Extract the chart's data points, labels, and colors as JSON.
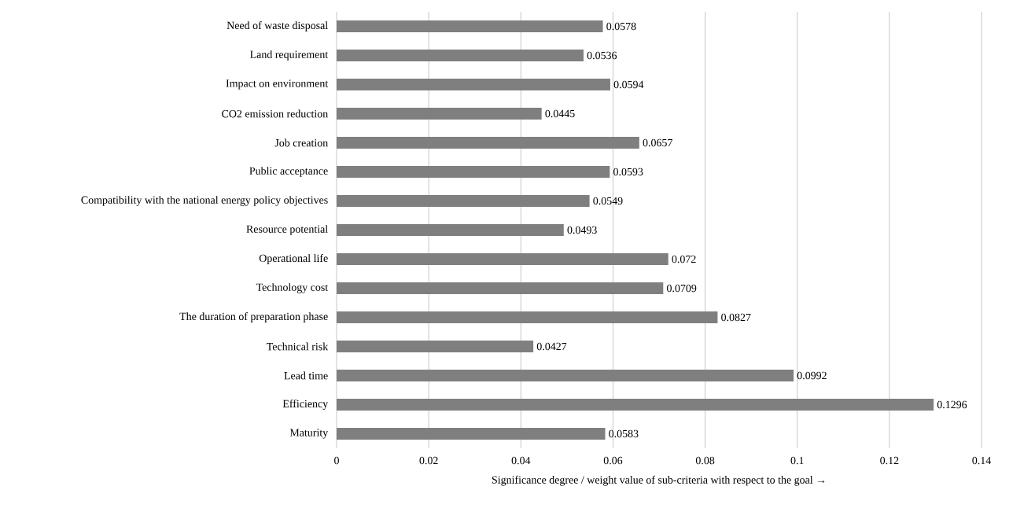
{
  "chart_data": {
    "type": "bar",
    "orientation": "horizontal",
    "xlabel": "Significance degree / weight value of sub-criteria with respect to the goal →",
    "categories": [
      "Need of waste disposal",
      "Land requirement",
      "Impact on environment",
      "CO2 emission reduction",
      "Job creation",
      "Public acceptance",
      "Compatibility with the national energy policy objectives",
      "Resource potential",
      "Operational life",
      "Technology cost",
      "The duration of preparation phase",
      "Technical risk",
      "Lead time",
      "Efficiency",
      "Maturity"
    ],
    "values": [
      0.0578,
      0.0536,
      0.0594,
      0.0445,
      0.0657,
      0.0593,
      0.0549,
      0.0493,
      0.072,
      0.0709,
      0.0827,
      0.0427,
      0.0992,
      0.1296,
      0.0583
    ],
    "color": "#7f7f7f",
    "xlim": [
      0,
      0.14
    ],
    "xticks": [
      0,
      0.02,
      0.04,
      0.06,
      0.08,
      0.1,
      0.12,
      0.14
    ],
    "grid": "x",
    "data_labels": true
  }
}
